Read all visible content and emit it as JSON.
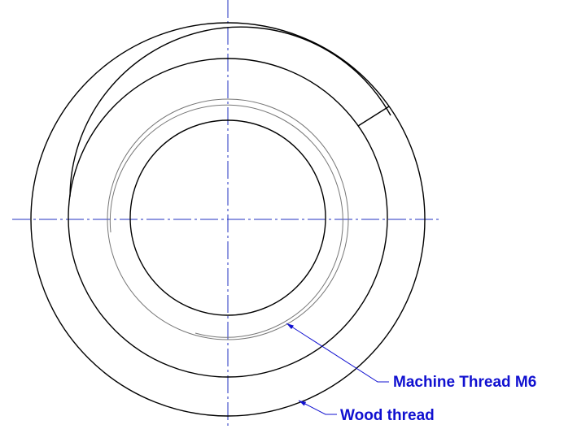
{
  "labels": {
    "machine_thread": "Machine Thread M6",
    "wood_thread": "Wood thread"
  }
}
